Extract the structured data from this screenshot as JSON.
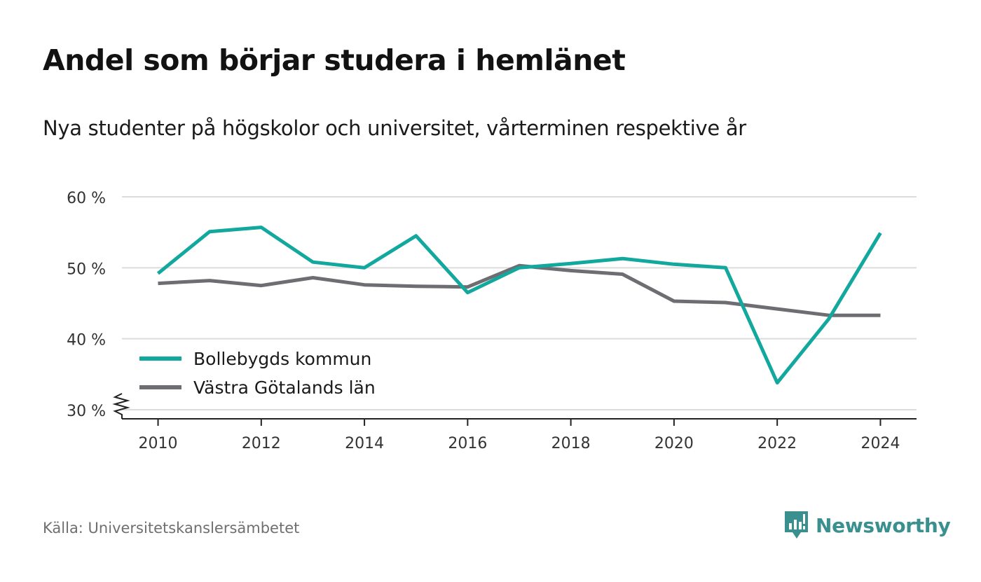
{
  "header": {
    "title": "Andel som börjar studera i hemlänet",
    "subtitle": "Nya studenter på högskolor och universitet, vårterminen respektive år"
  },
  "footer": {
    "source": "Källa: Universitetskanslersämbetet",
    "brand": "Newsworthy",
    "brand_icon": "bar-chart-speech-bubble-icon",
    "brand_color": "#3a8f8f"
  },
  "chart_data": {
    "type": "line",
    "x": [
      2010,
      2011,
      2012,
      2013,
      2014,
      2015,
      2016,
      2017,
      2018,
      2019,
      2020,
      2021,
      2022,
      2023,
      2024
    ],
    "xticks": [
      2010,
      2012,
      2014,
      2016,
      2018,
      2020,
      2022,
      2024
    ],
    "xlim": [
      2009.3,
      2024.7
    ],
    "ylim": [
      30,
      60
    ],
    "yticks": [
      30,
      40,
      50,
      60
    ],
    "ytick_labels": [
      "30 %",
      "40 %",
      "50 %",
      "60 %"
    ],
    "axis_break": true,
    "grid": true,
    "legend_position": "bottom-left",
    "series": [
      {
        "name": "Bollebygds kommun",
        "color": "#13a89e",
        "values": [
          49.2,
          55.1,
          55.7,
          50.8,
          50.0,
          54.5,
          46.5,
          50.0,
          50.6,
          51.3,
          50.5,
          50.0,
          33.8,
          42.8,
          54.9
        ]
      },
      {
        "name": "Västra Götalands län",
        "color": "#6e6e72",
        "values": [
          47.8,
          48.2,
          47.5,
          48.6,
          47.6,
          47.4,
          47.3,
          50.3,
          49.6,
          49.1,
          45.3,
          45.1,
          44.2,
          43.3,
          43.3
        ]
      }
    ]
  }
}
